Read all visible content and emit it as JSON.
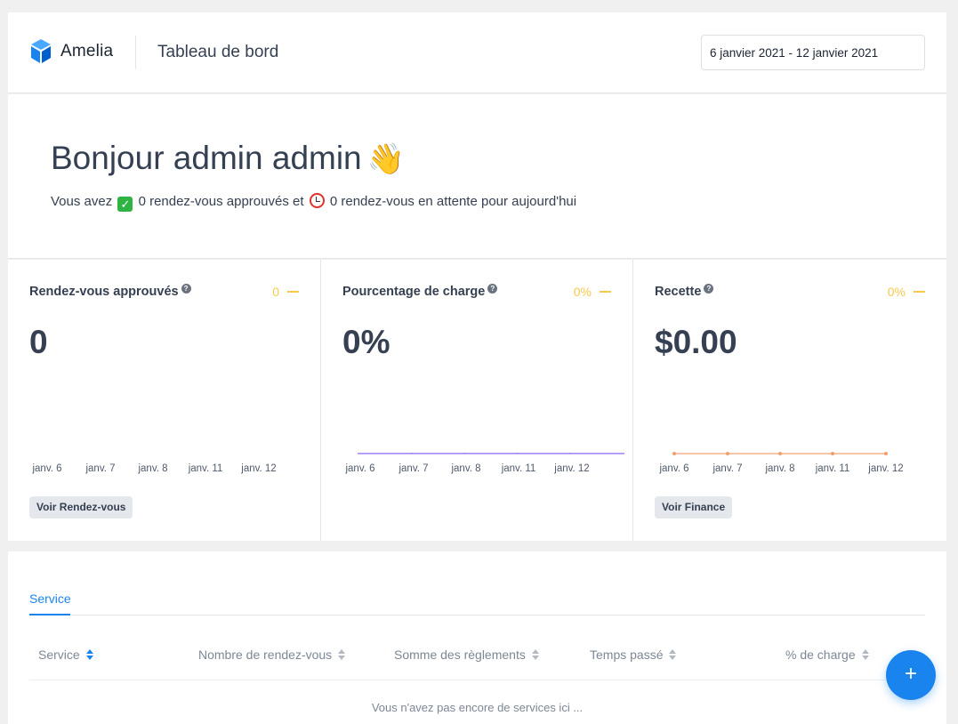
{
  "header": {
    "logo_text": "Amelia",
    "page_title": "Tableau de bord",
    "date_range": "6 janvier 2021 - 12 janvier 2021"
  },
  "welcome": {
    "greeting": "Bonjour admin admin",
    "greeting_emoji": "👋",
    "summary_prefix": "Vous avez",
    "approved_text": "0 rendez-vous approuvés et",
    "pending_text": "0 rendez-vous en attente pour aujourd'hui"
  },
  "stats": [
    {
      "title": "Rendez-vous approuvés",
      "change": "0",
      "value": "0",
      "button": "Voir Rendez-vous"
    },
    {
      "title": "Pourcentage de charge",
      "change": "0%",
      "value": "0%",
      "button": ""
    },
    {
      "title": "Recette",
      "change": "0%",
      "value": "$0.00",
      "button": "Voir Finance"
    }
  ],
  "chart_data": [
    {
      "type": "bar",
      "categories": [
        "janv. 6",
        "janv. 7",
        "janv. 8",
        "janv. 11",
        "janv. 12"
      ],
      "values": [
        0,
        0,
        0,
        0,
        0
      ],
      "color": "#1a84ee"
    },
    {
      "type": "bar",
      "categories": [
        "janv. 6",
        "janv. 7",
        "janv. 8",
        "janv. 11",
        "janv. 12"
      ],
      "values": [
        0,
        0,
        0,
        0,
        0
      ],
      "color": "#8b5cf6"
    },
    {
      "type": "line",
      "categories": [
        "janv. 6",
        "janv. 7",
        "janv. 8",
        "janv. 11",
        "janv. 12"
      ],
      "values": [
        0,
        0,
        0,
        0,
        0
      ],
      "color": "#f0a070"
    }
  ],
  "table": {
    "tab": "Service",
    "columns": [
      "Service",
      "Nombre de rendez-vous",
      "Somme des règlements",
      "Temps passé",
      "% de charge"
    ],
    "empty_message": "Vous n'avez pas encore de services ici ..."
  },
  "fab_label": "+",
  "colors": {
    "accent": "#1a84ee",
    "change": "#f7c948"
  }
}
